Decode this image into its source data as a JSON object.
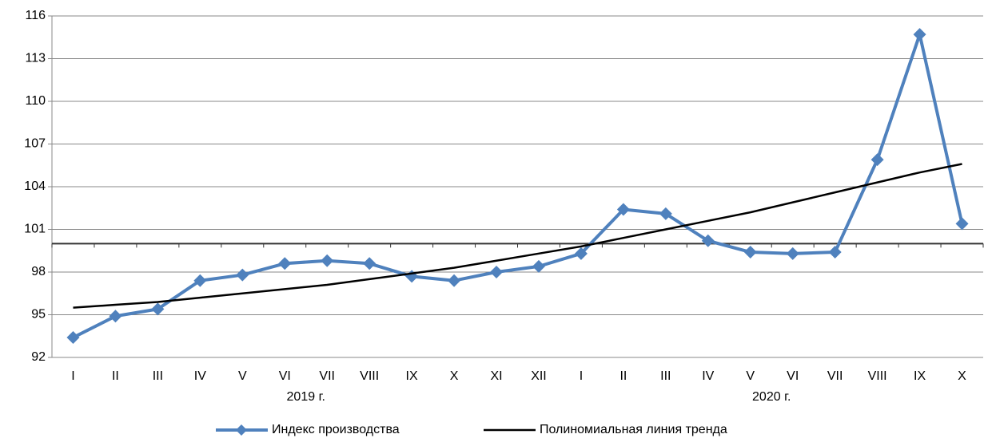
{
  "chart_data": {
    "type": "line",
    "categories": [
      "I",
      "II",
      "III",
      "IV",
      "V",
      "VI",
      "VII",
      "VIII",
      "IX",
      "X",
      "XI",
      "XII",
      "I",
      "II",
      "III",
      "IV",
      "V",
      "VI",
      "VII",
      "VIII",
      "IX",
      "X"
    ],
    "category_groups": [
      {
        "label": "2019 г.",
        "count": 12
      },
      {
        "label": "2020 г.",
        "count": 10
      }
    ],
    "series": [
      {
        "name": "Индекс производства",
        "color": "#4f81bd",
        "marker": "diamond",
        "values": [
          93.4,
          94.9,
          95.4,
          97.4,
          97.8,
          98.6,
          98.8,
          98.6,
          97.7,
          97.4,
          98.0,
          98.4,
          99.3,
          102.4,
          102.1,
          100.2,
          99.4,
          99.3,
          99.4,
          105.9,
          114.7,
          101.4
        ]
      },
      {
        "name": "Полиномиальная линия тренда",
        "color": "#000000",
        "marker": "none",
        "values": [
          95.5,
          95.7,
          95.9,
          96.2,
          96.5,
          96.8,
          97.1,
          97.5,
          97.9,
          98.3,
          98.8,
          99.3,
          99.8,
          100.4,
          101.0,
          101.6,
          102.2,
          102.9,
          103.6,
          104.3,
          105.0,
          105.6
        ]
      }
    ],
    "ylim": [
      92,
      116
    ],
    "yticks": [
      92,
      95,
      98,
      101,
      104,
      107,
      110,
      113,
      116
    ],
    "x_axis_at": 100,
    "grid": true,
    "legend": "bottom"
  }
}
